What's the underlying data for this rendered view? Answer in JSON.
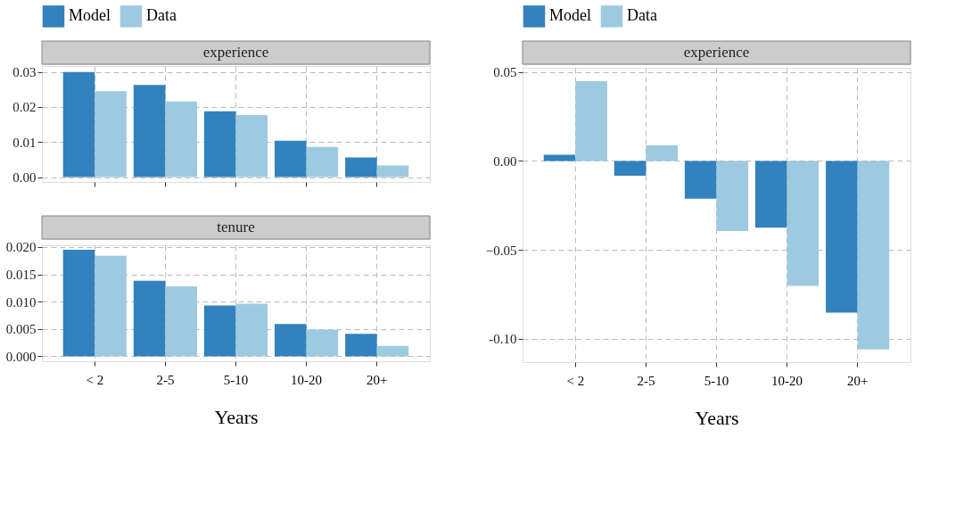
{
  "chart_data": [
    {
      "type": "bar",
      "title": "experience",
      "categories": [
        null,
        null,
        null,
        null,
        null
      ],
      "series": [
        {
          "name": "Model",
          "color": "#3182bd",
          "values": [
            0.03,
            0.0263,
            0.0188,
            0.0104,
            0.0056
          ]
        },
        {
          "name": "Data",
          "color": "#9ecae1",
          "values": [
            0.0245,
            0.0216,
            0.0177,
            0.0086,
            0.0033
          ]
        }
      ],
      "ylim": [
        -0.0014,
        0.0317
      ],
      "yticks": [
        {
          "value": 0,
          "label": "0.00"
        },
        0.01,
        0.02,
        0.03
      ],
      "grid": true,
      "legend": "top",
      "tick_labels": "y"
    },
    {
      "type": "bar",
      "title": "tenure",
      "categories": [
        "< 2",
        "2-5",
        "5-10",
        "10-20",
        "20+"
      ],
      "series": [
        {
          "name": "Model",
          "color": "#3182bd",
          "values": [
            0.0195,
            0.0138,
            0.0093,
            0.0059,
            0.0041
          ]
        },
        {
          "name": "Data",
          "color": "#9ecae1",
          "values": [
            0.0184,
            0.0128,
            0.0096,
            0.0049,
            0.0019
          ]
        }
      ],
      "ylim": [
        -0.0009,
        0.0203
      ],
      "yticks": [
        {
          "value": 0,
          "label": "0.000"
        },
        0.005,
        {
          "value": 0.01,
          "label": "0.010"
        },
        0.015,
        {
          "value": 0.02,
          "label": "0.020"
        }
      ],
      "grid": true,
      "legend": "top",
      "xlabel": "Years"
    },
    {
      "type": "bar",
      "title": "experience",
      "categories": [
        "< 2",
        "2-5",
        "5-10",
        "10-20",
        "20+"
      ],
      "series": [
        {
          "name": "Model",
          "color": "#3182bd",
          "values": [
            0.0035,
            -0.0083,
            -0.0213,
            -0.0375,
            -0.0854
          ]
        },
        {
          "name": "Data",
          "color": "#9ecae1",
          "values": [
            0.0449,
            0.0087,
            -0.0394,
            -0.0703,
            -0.106
          ]
        }
      ],
      "ylim": [
        -0.1132,
        0.0524
      ],
      "yticks": [
        {
          "value": -0.1,
          "label": "-0.10"
        },
        -0.05,
        {
          "value": 0,
          "label": "0.00"
        },
        0.05
      ],
      "grid": true,
      "legend": "top",
      "xlabel": "Years"
    }
  ]
}
